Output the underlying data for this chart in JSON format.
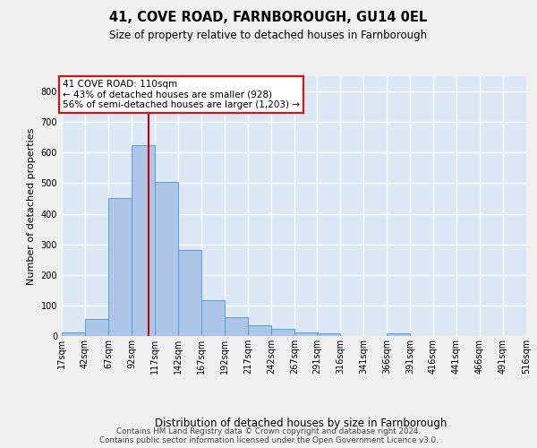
{
  "title1": "41, COVE ROAD, FARNBOROUGH, GU14 0EL",
  "title2": "Size of property relative to detached houses in Farnborough",
  "xlabel": "Distribution of detached houses by size in Farnborough",
  "ylabel": "Number of detached properties",
  "bar_values": [
    12,
    55,
    450,
    625,
    505,
    280,
    118,
    63,
    35,
    22,
    12,
    8,
    0,
    0,
    8,
    0,
    0,
    0,
    0
  ],
  "bar_color": "#adc6e8",
  "bar_edge_color": "#5b9bd5",
  "plot_bg_color": "#dce8f5",
  "fig_bg_color": "#f0f0f0",
  "grid_color": "#ffffff",
  "annotation_text": "41 COVE ROAD: 110sqm\n← 43% of detached houses are smaller (928)\n56% of semi-detached houses are larger (1,203) →",
  "vline_x": 110,
  "vline_color": "#cc0000",
  "ylim": [
    0,
    850
  ],
  "yticks": [
    0,
    100,
    200,
    300,
    400,
    500,
    600,
    700,
    800
  ],
  "footnote_line1": "Contains HM Land Registry data © Crown copyright and database right 2024.",
  "footnote_line2": "Contains public sector information licensed under the Open Government Licence v3.0.",
  "bin_starts": [
    17,
    42,
    67,
    92,
    117,
    142,
    167,
    192,
    217,
    242,
    267,
    291,
    316,
    341,
    366,
    391,
    416,
    441,
    466,
    491,
    516
  ],
  "title1_fontsize": 10.5,
  "title2_fontsize": 8.5,
  "ylabel_fontsize": 8,
  "xlabel_fontsize": 8.5,
  "annot_fontsize": 7.5,
  "tick_fontsize": 7
}
